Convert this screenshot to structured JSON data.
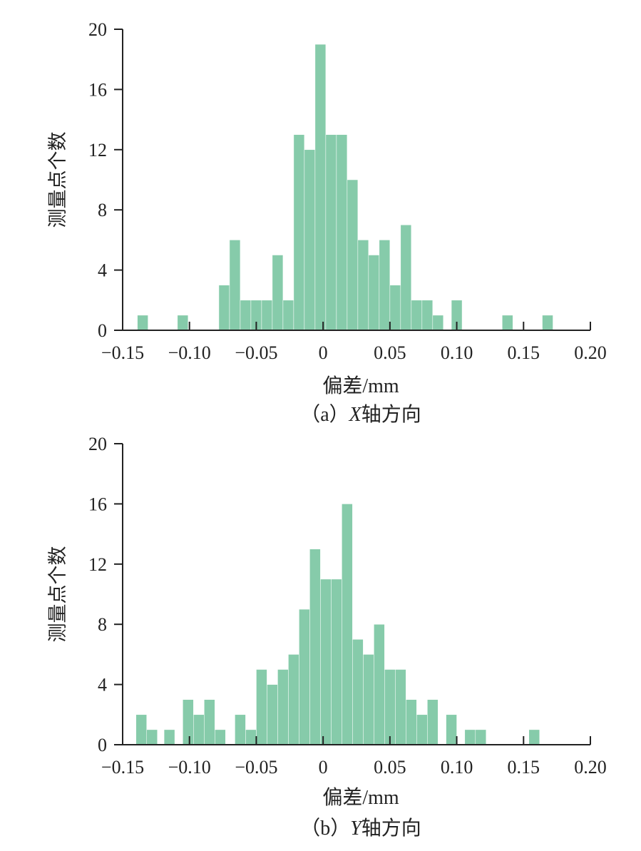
{
  "colors": {
    "bar": "#86cbaa",
    "bar_stroke": "#ffffff",
    "axis": "#222222"
  },
  "chart_data": [
    {
      "type": "bar",
      "caption_prefix": "（a）",
      "caption_var": "X",
      "caption_suffix": "轴方向",
      "xlabel": "偏差/mm",
      "ylabel": "测量点个数",
      "xlim": [
        -0.15,
        0.2
      ],
      "ylim": [
        0,
        20
      ],
      "xticks": [
        -0.15,
        -0.1,
        -0.05,
        0,
        0.05,
        0.1,
        0.15,
        0.2
      ],
      "xtick_labels": [
        "−0.15",
        "−0.10",
        "−0.05",
        "0",
        "0.05",
        "0.10",
        "0.15",
        "0.20"
      ],
      "yticks": [
        0,
        4,
        8,
        12,
        16,
        20
      ],
      "ytick_labels": [
        "0",
        "4",
        "8",
        "12",
        "16",
        "20"
      ],
      "bin_width": 0.008,
      "bins": [
        {
          "x": -0.135,
          "count": 1
        },
        {
          "x": -0.105,
          "count": 1
        },
        {
          "x": -0.074,
          "count": 3
        },
        {
          "x": -0.066,
          "count": 6
        },
        {
          "x": -0.058,
          "count": 2
        },
        {
          "x": -0.05,
          "count": 2
        },
        {
          "x": -0.042,
          "count": 2
        },
        {
          "x": -0.034,
          "count": 5
        },
        {
          "x": -0.026,
          "count": 2
        },
        {
          "x": -0.018,
          "count": 13
        },
        {
          "x": -0.01,
          "count": 12
        },
        {
          "x": -0.002,
          "count": 19
        },
        {
          "x": 0.006,
          "count": 13
        },
        {
          "x": 0.014,
          "count": 13
        },
        {
          "x": 0.022,
          "count": 10
        },
        {
          "x": 0.03,
          "count": 6
        },
        {
          "x": 0.038,
          "count": 5
        },
        {
          "x": 0.046,
          "count": 6
        },
        {
          "x": 0.054,
          "count": 3
        },
        {
          "x": 0.062,
          "count": 7
        },
        {
          "x": 0.07,
          "count": 2
        },
        {
          "x": 0.078,
          "count": 2
        },
        {
          "x": 0.086,
          "count": 1
        },
        {
          "x": 0.1,
          "count": 2
        },
        {
          "x": 0.138,
          "count": 1
        },
        {
          "x": 0.168,
          "count": 1
        }
      ]
    },
    {
      "type": "bar",
      "caption_prefix": "（b）",
      "caption_var": "Y",
      "caption_suffix": "轴方向",
      "xlabel": "偏差/mm",
      "ylabel": "测量点个数",
      "xlim": [
        -0.15,
        0.2
      ],
      "ylim": [
        0,
        20
      ],
      "xticks": [
        -0.15,
        -0.1,
        -0.05,
        0,
        0.05,
        0.1,
        0.15,
        0.2
      ],
      "xtick_labels": [
        "−0.15",
        "−0.10",
        "−0.05",
        "0",
        "0.05",
        "0.10",
        "0.15",
        "0.20"
      ],
      "yticks": [
        0,
        4,
        8,
        12,
        16,
        20
      ],
      "ytick_labels": [
        "0",
        "4",
        "8",
        "12",
        "16",
        "20"
      ],
      "bin_width": 0.008,
      "bins": [
        {
          "x": -0.136,
          "count": 2
        },
        {
          "x": -0.128,
          "count": 1
        },
        {
          "x": -0.115,
          "count": 1
        },
        {
          "x": -0.101,
          "count": 3
        },
        {
          "x": -0.093,
          "count": 2
        },
        {
          "x": -0.085,
          "count": 3
        },
        {
          "x": -0.077,
          "count": 1
        },
        {
          "x": -0.062,
          "count": 2
        },
        {
          "x": -0.054,
          "count": 1
        },
        {
          "x": -0.046,
          "count": 5
        },
        {
          "x": -0.038,
          "count": 4
        },
        {
          "x": -0.03,
          "count": 5
        },
        {
          "x": -0.022,
          "count": 6
        },
        {
          "x": -0.014,
          "count": 9
        },
        {
          "x": -0.006,
          "count": 13
        },
        {
          "x": 0.002,
          "count": 11
        },
        {
          "x": 0.01,
          "count": 11
        },
        {
          "x": 0.018,
          "count": 16
        },
        {
          "x": 0.026,
          "count": 7
        },
        {
          "x": 0.034,
          "count": 6
        },
        {
          "x": 0.042,
          "count": 8
        },
        {
          "x": 0.05,
          "count": 5
        },
        {
          "x": 0.058,
          "count": 5
        },
        {
          "x": 0.066,
          "count": 3
        },
        {
          "x": 0.074,
          "count": 2
        },
        {
          "x": 0.082,
          "count": 3
        },
        {
          "x": 0.096,
          "count": 2
        },
        {
          "x": 0.11,
          "count": 1
        },
        {
          "x": 0.118,
          "count": 1
        },
        {
          "x": 0.158,
          "count": 1
        }
      ]
    }
  ]
}
